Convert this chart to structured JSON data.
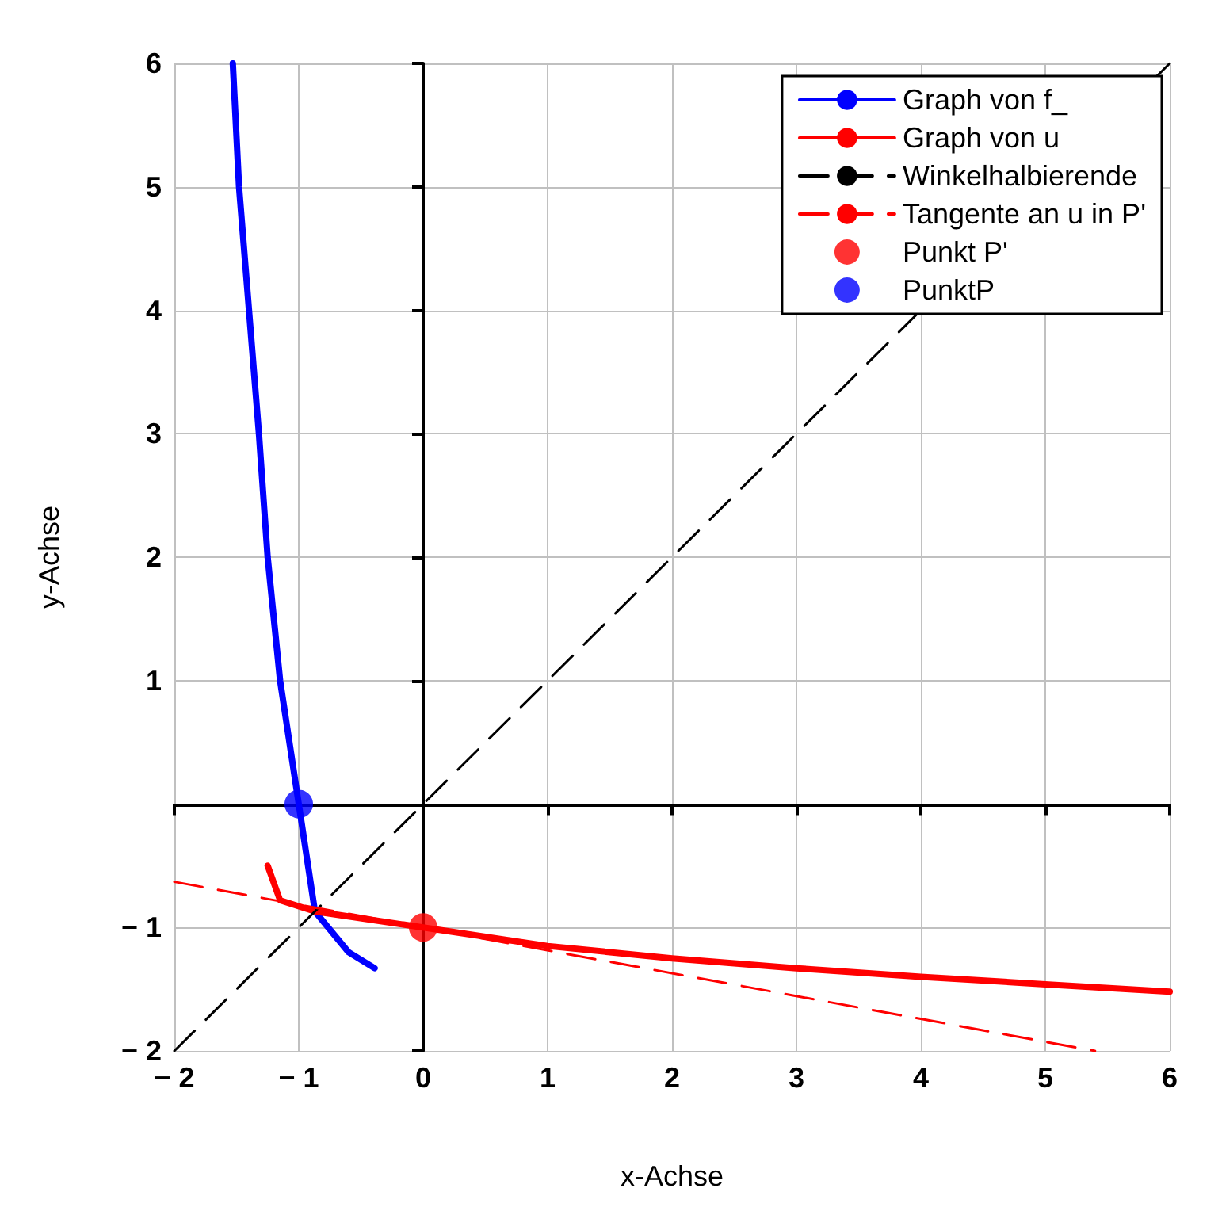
{
  "chart_data": {
    "type": "line",
    "xlabel": "x-Achse",
    "ylabel": "y-Achse",
    "xlim": [
      -2,
      6
    ],
    "ylim": [
      -2,
      6
    ],
    "xticks": [
      {
        "value": -2,
        "label": "− 2"
      },
      {
        "value": -1,
        "label": "− 1"
      },
      0,
      1,
      2,
      3,
      4,
      5,
      6
    ],
    "yticks": [
      {
        "value": -2,
        "label": "− 2"
      },
      {
        "value": -1,
        "label": "− 1"
      },
      {
        "value": 0,
        "label": null
      },
      1,
      2,
      3,
      4,
      5,
      6
    ],
    "grid": true,
    "legend": "top right",
    "marker": "none",
    "series": [
      {
        "name": "Graph von f_",
        "color": "#0000ff",
        "line_style": "solid",
        "x": [
          -1.53,
          -1.48,
          -1.4,
          -1.32,
          -1.25,
          -1.15,
          -1,
          -0.87,
          -0.6,
          -0.39
        ],
        "values": [
          6,
          5,
          4,
          3,
          2,
          1,
          0,
          -0.87,
          -1.2,
          -1.33
        ]
      },
      {
        "name": "Graph von u",
        "color": "#ff0000",
        "line_style": "solid",
        "x": [
          -1.25,
          -1.15,
          -0.87,
          0,
          1,
          2,
          3,
          4,
          5,
          6
        ],
        "values": [
          -0.5,
          -0.78,
          -0.87,
          -1,
          -1.15,
          -1.25,
          -1.33,
          -1.4,
          -1.46,
          -1.52
        ]
      },
      {
        "name": "Winkelhalbierende",
        "color": "#000000",
        "line_style": "dashed",
        "x": [
          -2,
          6
        ],
        "values": [
          -2,
          6
        ]
      },
      {
        "name": "Tangente an u in P'",
        "color": "#ff0000",
        "line_style": "dashed",
        "x": [
          -2,
          5.4
        ],
        "values": [
          -0.63,
          -2
        ]
      },
      {
        "name": "Punkt P'",
        "type": "scatter",
        "marker": "circle",
        "color": "#ff0000",
        "x": [
          0
        ],
        "values": [
          -1
        ]
      },
      {
        "name": "PunktP",
        "type": "scatter",
        "marker": "circle",
        "color": "#0000ff",
        "x": [
          -1
        ],
        "values": [
          0
        ]
      }
    ]
  }
}
